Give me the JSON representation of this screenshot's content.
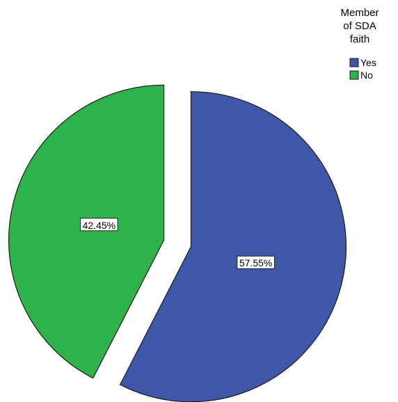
{
  "chart_data": {
    "type": "pie",
    "legend_title_lines": [
      "Member",
      "of SDA",
      "faith"
    ],
    "legend_placement": "top-right",
    "exploded": true,
    "slices": [
      {
        "label": "Yes",
        "value": 57.55,
        "value_label": "57.55%",
        "color": "#3f57a8"
      },
      {
        "label": "No",
        "value": 42.45,
        "value_label": "42.45%",
        "color": "#2db34a"
      }
    ]
  }
}
